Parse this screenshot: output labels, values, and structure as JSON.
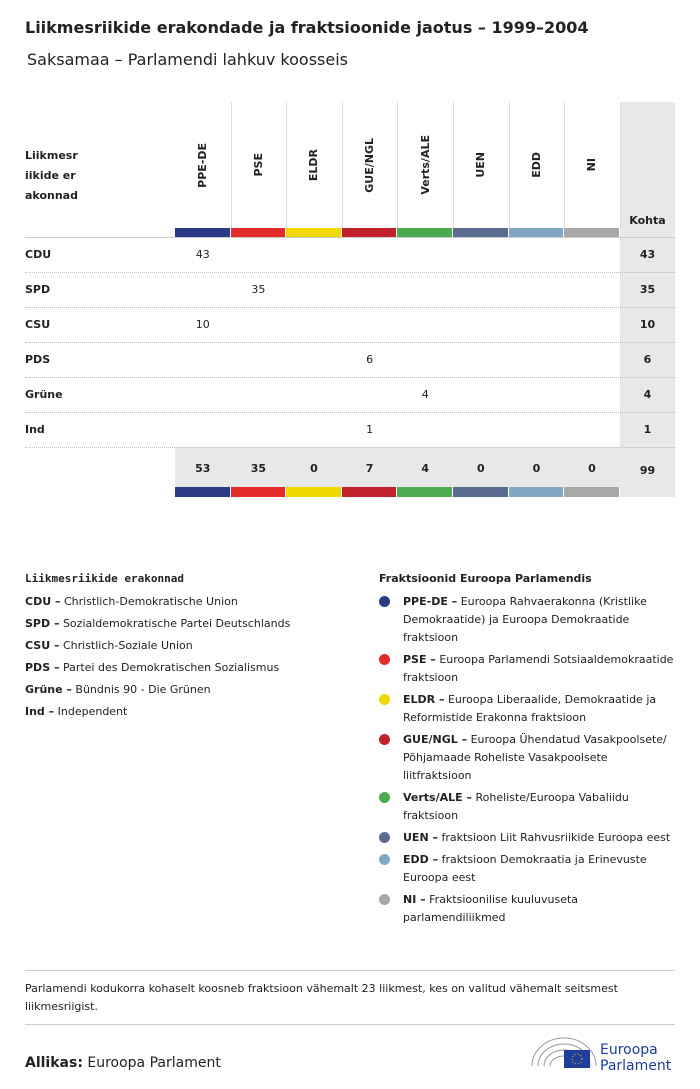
{
  "header": {
    "title": "Liikmesriikide erakondade ja fraktsioonide jaotus – 1999–2004",
    "subtitle": "Saksamaa – Parlamendi lahkuv koosseis"
  },
  "table": {
    "corner_label": "Liikmesriikide erakonnad",
    "total_label": "Kohta",
    "groups": [
      {
        "name": "PPE-DE",
        "color": "#2b3a85"
      },
      {
        "name": "PSE",
        "color": "#e32b2b"
      },
      {
        "name": "ELDR",
        "color": "#f0d800"
      },
      {
        "name": "GUE/NGL",
        "color": "#c0212a"
      },
      {
        "name": "Verts/ALE",
        "color": "#4caa50"
      },
      {
        "name": "UEN",
        "color": "#5a6a90"
      },
      {
        "name": "EDD",
        "color": "#80a8c4"
      },
      {
        "name": "NI",
        "color": "#a8a8a8"
      }
    ],
    "rows": [
      {
        "party": "CDU",
        "cells": [
          43,
          null,
          null,
          null,
          null,
          null,
          null,
          null
        ],
        "total": 43
      },
      {
        "party": "SPD",
        "cells": [
          null,
          35,
          null,
          null,
          null,
          null,
          null,
          null
        ],
        "total": 35
      },
      {
        "party": "CSU",
        "cells": [
          10,
          null,
          null,
          null,
          null,
          null,
          null,
          null
        ],
        "total": 10
      },
      {
        "party": "PDS",
        "cells": [
          null,
          null,
          null,
          6,
          null,
          null,
          null,
          null
        ],
        "total": 6
      },
      {
        "party": "Grüne",
        "cells": [
          null,
          null,
          null,
          null,
          4,
          null,
          null,
          null
        ],
        "total": 4
      },
      {
        "party": "Ind",
        "cells": [
          null,
          null,
          null,
          1,
          null,
          null,
          null,
          null
        ],
        "total": 1
      }
    ],
    "totals": [
      53,
      35,
      0,
      7,
      4,
      0,
      0,
      0
    ],
    "grand_total": 99
  },
  "parties_legend": {
    "title": "Liikmesriikide erakonnad",
    "items": [
      {
        "abbr": "CDU –",
        "name": "Christlich-Demokratische Union"
      },
      {
        "abbr": "SPD –",
        "name": "Sozialdemokratische Partei Deutschlands"
      },
      {
        "abbr": "CSU –",
        "name": "Christlich-Soziale Union"
      },
      {
        "abbr": "PDS –",
        "name": "Partei des Demokratischen Sozialismus"
      },
      {
        "abbr": "Grüne –",
        "name": "Bündnis 90 - Die Grünen"
      },
      {
        "abbr": "Ind –",
        "name": "Independent"
      }
    ]
  },
  "groups_legend": {
    "title": "Fraktsioonid Euroopa Parlamendis",
    "items": [
      {
        "abbr": "PPE-DE –",
        "name": "Euroopa Rahvaerakonna (Kristlike Demokraatide) ja Euroopa Demokraatide fraktsioon"
      },
      {
        "abbr": "PSE –",
        "name": "Euroopa Parlamendi Sotsiaaldemokraatide fraktsioon"
      },
      {
        "abbr": "ELDR –",
        "name": "Euroopa Liberaalide, Demokraatide ja Reformistide Erakonna fraktsioon"
      },
      {
        "abbr": "GUE/NGL –",
        "name": "Euroopa Ühendatud Vasakpoolsete/ Põhjamaade Roheliste Vasakpoolsete liitfraktsioon"
      },
      {
        "abbr": "Verts/ALE –",
        "name": "Roheliste/Euroopa Vabaliidu fraktsioon"
      },
      {
        "abbr": "UEN –",
        "name": "fraktsioon Liit Rahvusriikide Euroopa eest"
      },
      {
        "abbr": "EDD –",
        "name": "fraktsioon Demokraatia ja Erinevuste Euroopa eest"
      },
      {
        "abbr": "NI –",
        "name": "Fraktsioonilise kuuluvuseta parlamendiliikmed"
      }
    ]
  },
  "note": "Parlamendi kodukorra kohaselt koosneb fraktsioon vähemalt 23 liikmest, kes on valitud vähemalt seitsmest liikmesriigist.",
  "source": {
    "label": "Allikas:",
    "text": "Euroopa Parlament"
  },
  "logo": {
    "line1": "Euroopa",
    "line2": "Parlament"
  }
}
